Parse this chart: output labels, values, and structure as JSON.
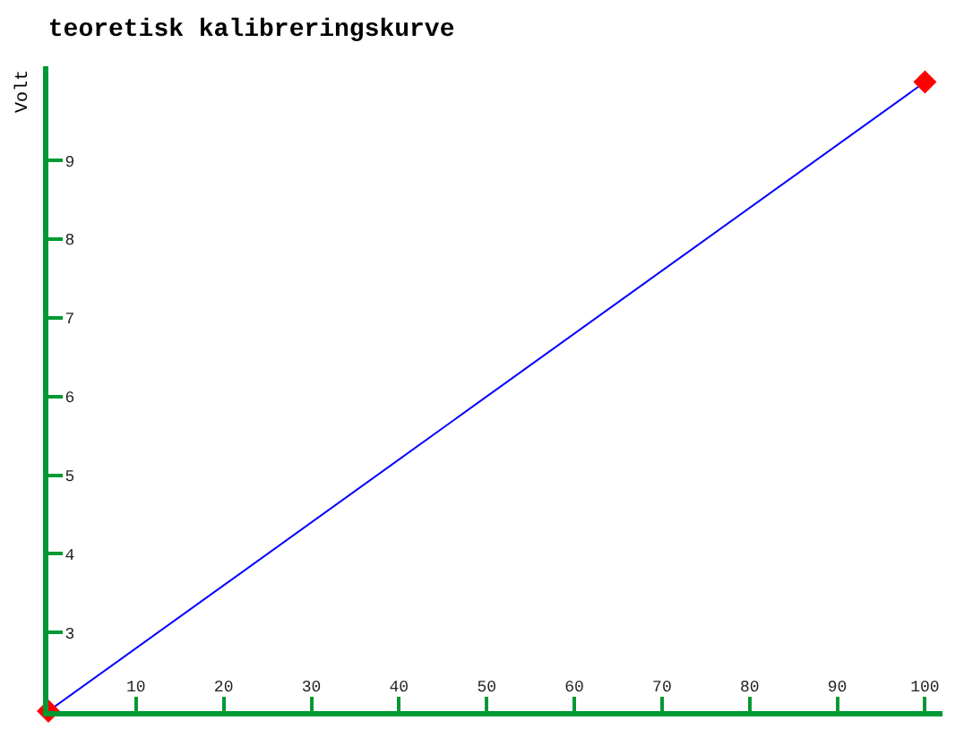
{
  "chart_data": {
    "type": "line",
    "title": "teoretisk kalibreringskurve",
    "ylabel": "Volt",
    "x": [
      0,
      100
    ],
    "series": [
      {
        "color": "#0000ff",
        "colors": [
          "#ff0000",
          "#ff0000"
        ],
        "values": [
          2,
          10
        ]
      }
    ],
    "marker": "diamond",
    "line_style": "solid",
    "xlim": [
      0,
      102
    ],
    "xticks": [
      10,
      20,
      30,
      40,
      50,
      60,
      70,
      80,
      90,
      100
    ],
    "ylim": [
      2,
      10.2
    ],
    "yticks": [
      3,
      4,
      5,
      6,
      7,
      8,
      9
    ]
  }
}
